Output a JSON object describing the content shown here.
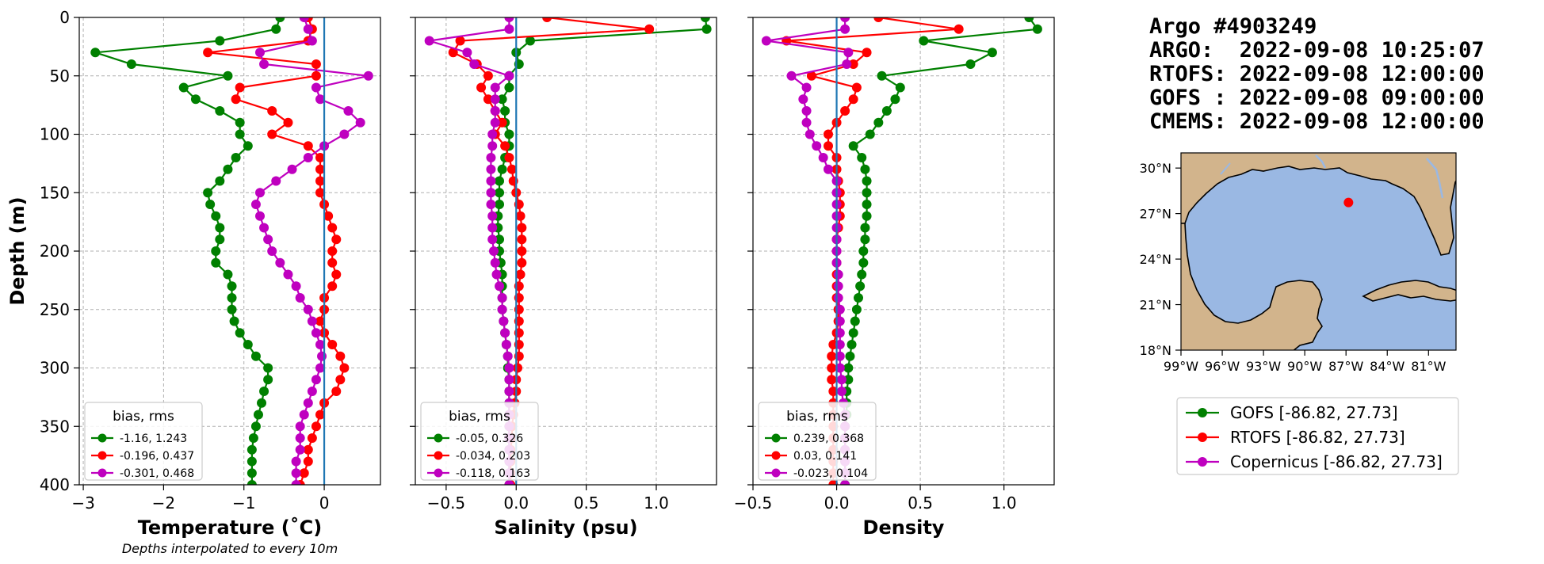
{
  "colors": {
    "GOFS": "#008000",
    "RTOFS": "#ff0000",
    "Copernicus": "#bf00bf",
    "zero_line": "#1f77b4",
    "grid": "#b0b0b0",
    "land": "#d2b48c",
    "ocean": "#9ab8e3"
  },
  "chart_data": [
    {
      "type": "line",
      "xlabel": "Temperature (˚C)",
      "ylabel": "Depth (m)",
      "note": "Depths interpolated to every 10m",
      "xlim": [
        -3.05,
        0.7
      ],
      "ylim": [
        400,
        0
      ],
      "xticks": [
        -3,
        -2,
        -1,
        0
      ],
      "xtick_labels": [
        "−3",
        "−2",
        "−1",
        "0"
      ],
      "yticks": [
        0,
        50,
        100,
        150,
        200,
        250,
        300,
        350,
        400
      ],
      "yticks_labels": [
        "0",
        "50",
        "100",
        "150",
        "200",
        "250",
        "300",
        "350",
        "400"
      ],
      "grid": true,
      "legend": {
        "title": "bias, rms",
        "placement": "lower-left",
        "entries": [
          "-1.16, 1.243",
          "-0.196, 0.437",
          "-0.301, 0.468"
        ]
      },
      "depth": [
        0,
        10,
        20,
        30,
        40,
        50,
        60,
        70,
        80,
        90,
        100,
        110,
        120,
        130,
        140,
        150,
        160,
        170,
        180,
        190,
        200,
        210,
        220,
        230,
        240,
        250,
        260,
        270,
        280,
        290,
        300,
        310,
        320,
        330,
        340,
        350,
        360,
        370,
        380,
        390,
        400
      ],
      "series": [
        {
          "key": "GOFS",
          "values": [
            -0.55,
            -0.6,
            -1.3,
            -2.85,
            -2.4,
            -1.2,
            -1.75,
            -1.6,
            -1.3,
            -1.05,
            -1.05,
            -0.95,
            -1.1,
            -1.2,
            -1.3,
            -1.45,
            -1.42,
            -1.35,
            -1.3,
            -1.3,
            -1.35,
            -1.35,
            -1.2,
            -1.15,
            -1.15,
            -1.15,
            -1.12,
            -1.05,
            -0.95,
            -0.85,
            -0.7,
            -0.7,
            -0.75,
            -0.78,
            -0.82,
            -0.85,
            -0.88,
            -0.9,
            -0.9,
            -0.9,
            -0.9
          ]
        },
        {
          "key": "RTOFS",
          "values": [
            -0.2,
            -0.15,
            -0.2,
            -1.45,
            -0.1,
            -0.1,
            -1.05,
            -1.1,
            -0.65,
            -0.45,
            -0.65,
            -0.2,
            -0.05,
            -0.05,
            -0.05,
            -0.05,
            0.0,
            0.05,
            0.1,
            0.15,
            0.1,
            0.1,
            0.15,
            0.1,
            0.0,
            0.0,
            -0.05,
            0.0,
            0.1,
            0.2,
            0.25,
            0.2,
            0.15,
            0.0,
            -0.05,
            -0.1,
            -0.15,
            -0.2,
            -0.2,
            -0.25,
            -0.3
          ]
        },
        {
          "key": "Copernicus",
          "values": [
            -0.25,
            -0.2,
            -0.15,
            -0.8,
            -0.75,
            0.55,
            -0.1,
            -0.05,
            0.3,
            0.45,
            0.25,
            0.0,
            -0.2,
            -0.4,
            -0.6,
            -0.8,
            -0.85,
            -0.8,
            -0.75,
            -0.7,
            -0.65,
            -0.55,
            -0.45,
            -0.35,
            -0.3,
            -0.2,
            -0.15,
            -0.1,
            -0.05,
            -0.03,
            -0.05,
            -0.1,
            -0.15,
            -0.2,
            -0.25,
            -0.3,
            -0.3,
            -0.3,
            -0.35,
            -0.35,
            -0.35
          ]
        }
      ]
    },
    {
      "type": "line",
      "xlabel": "Salinity (psu)",
      "ylabel": "",
      "note": "",
      "xlim": [
        -0.72,
        1.43
      ],
      "ylim": [
        400,
        0
      ],
      "xticks": [
        -0.5,
        0,
        0.5,
        1
      ],
      "xtick_labels": [
        "−0.5",
        "0.0",
        "0.5",
        "1.0"
      ],
      "yticks": [
        0,
        50,
        100,
        150,
        200,
        250,
        300,
        350,
        400
      ],
      "yticks_labels": [],
      "grid": true,
      "legend": {
        "title": "bias, rms",
        "placement": "lower-left",
        "entries": [
          "-0.05, 0.326",
          "-0.034, 0.203",
          "-0.118, 0.163"
        ]
      },
      "depth": [
        0,
        10,
        20,
        30,
        40,
        50,
        60,
        70,
        80,
        90,
        100,
        110,
        120,
        130,
        140,
        150,
        160,
        170,
        180,
        190,
        200,
        210,
        220,
        230,
        240,
        250,
        260,
        270,
        280,
        290,
        300,
        310,
        320,
        330,
        340,
        350,
        360,
        370,
        380,
        390,
        400
      ],
      "series": [
        {
          "key": "GOFS",
          "values": [
            1.35,
            1.36,
            0.1,
            0.0,
            0.02,
            -0.05,
            -0.05,
            -0.1,
            -0.08,
            -0.08,
            -0.05,
            -0.05,
            -0.08,
            -0.1,
            -0.12,
            -0.12,
            -0.12,
            -0.13,
            -0.13,
            -0.12,
            -0.12,
            -0.11,
            -0.1,
            -0.1,
            -0.1,
            -0.1,
            -0.09,
            -0.08,
            -0.07,
            -0.06,
            -0.06,
            -0.05,
            -0.05,
            -0.05,
            -0.05,
            -0.05,
            -0.05,
            -0.05,
            -0.05,
            -0.05,
            -0.05
          ]
        },
        {
          "key": "RTOFS",
          "values": [
            0.22,
            0.95,
            -0.4,
            -0.45,
            -0.28,
            -0.2,
            -0.25,
            -0.2,
            -0.15,
            -0.1,
            -0.15,
            -0.08,
            -0.05,
            -0.03,
            -0.02,
            0.0,
            0.02,
            0.03,
            0.04,
            0.04,
            0.04,
            0.04,
            0.03,
            0.02,
            0.02,
            0.02,
            0.02,
            0.02,
            0.02,
            0.02,
            0.01,
            0.0,
            0.0,
            -0.01,
            -0.02,
            -0.03,
            -0.03,
            -0.04,
            -0.04,
            -0.04,
            -0.04
          ]
        },
        {
          "key": "Copernicus",
          "values": [
            -0.05,
            -0.05,
            -0.62,
            -0.35,
            -0.3,
            -0.05,
            -0.15,
            -0.15,
            -0.15,
            -0.15,
            -0.17,
            -0.17,
            -0.18,
            -0.18,
            -0.18,
            -0.18,
            -0.18,
            -0.17,
            -0.17,
            -0.17,
            -0.16,
            -0.15,
            -0.14,
            -0.12,
            -0.1,
            -0.1,
            -0.09,
            -0.08,
            -0.07,
            -0.06,
            -0.05,
            -0.05,
            -0.05,
            -0.05,
            -0.05,
            -0.05,
            -0.05,
            -0.05,
            -0.05,
            -0.05,
            -0.05
          ]
        }
      ]
    },
    {
      "type": "line",
      "xlabel": "Density",
      "ylabel": "",
      "note": "",
      "xlim": [
        -0.5,
        1.3
      ],
      "ylim": [
        400,
        0
      ],
      "xticks": [
        -0.5,
        0,
        0.5,
        1
      ],
      "xtick_labels": [
        "−0.5",
        "0.0",
        "0.5",
        "1.0"
      ],
      "yticks": [
        0,
        50,
        100,
        150,
        200,
        250,
        300,
        350,
        400
      ],
      "yticks_labels": [],
      "grid": true,
      "legend": {
        "title": "bias, rms",
        "placement": "lower-left",
        "entries": [
          "0.239, 0.368",
          "0.03, 0.141",
          "-0.023, 0.104"
        ]
      },
      "depth": [
        0,
        10,
        20,
        30,
        40,
        50,
        60,
        70,
        80,
        90,
        100,
        110,
        120,
        130,
        140,
        150,
        160,
        170,
        180,
        190,
        200,
        210,
        220,
        230,
        240,
        250,
        260,
        270,
        280,
        290,
        300,
        310,
        320,
        330,
        340,
        350,
        360,
        370,
        380,
        390,
        400
      ],
      "series": [
        {
          "key": "GOFS",
          "values": [
            1.15,
            1.2,
            0.52,
            0.93,
            0.8,
            0.27,
            0.38,
            0.35,
            0.3,
            0.25,
            0.2,
            0.1,
            0.15,
            0.17,
            0.18,
            0.18,
            0.18,
            0.18,
            0.17,
            0.17,
            0.16,
            0.16,
            0.15,
            0.14,
            0.13,
            0.12,
            0.11,
            0.1,
            0.09,
            0.08,
            0.07,
            0.07,
            0.06,
            0.06,
            0.06,
            0.05,
            0.05,
            0.05,
            0.05,
            0.05,
            0.05
          ]
        },
        {
          "key": "RTOFS",
          "values": [
            0.25,
            0.73,
            -0.3,
            0.18,
            0.1,
            -0.15,
            0.12,
            0.1,
            0.05,
            0.0,
            -0.05,
            -0.05,
            0.0,
            0.0,
            0.01,
            0.02,
            0.02,
            0.02,
            0.01,
            0.0,
            0.0,
            0.0,
            0.0,
            0.0,
            0.0,
            0.01,
            0.01,
            0.0,
            -0.02,
            -0.03,
            -0.03,
            -0.03,
            -0.02,
            -0.02,
            -0.02,
            -0.02,
            -0.02,
            -0.02,
            -0.02,
            -0.02,
            -0.02
          ]
        },
        {
          "key": "Copernicus",
          "values": [
            0.05,
            0.05,
            -0.42,
            0.07,
            0.06,
            -0.27,
            -0.18,
            -0.2,
            -0.18,
            -0.18,
            -0.16,
            -0.12,
            -0.08,
            -0.05,
            0.0,
            0.0,
            0.0,
            0.0,
            0.0,
            0.0,
            0.0,
            0.0,
            0.01,
            0.01,
            0.01,
            0.02,
            0.02,
            0.02,
            0.02,
            0.02,
            0.02,
            0.03,
            0.03,
            0.04,
            0.05,
            0.05,
            0.05,
            0.05,
            0.05,
            0.05,
            0.05
          ]
        }
      ]
    }
  ],
  "info": {
    "title": "Argo #4903249",
    "lines": [
      "ARGO:  2022-09-08 10:25:07",
      "RTOFS: 2022-09-08 12:00:00",
      "GOFS : 2022-09-08 09:00:00",
      "CMEMS: 2022-09-08 12:00:00"
    ]
  },
  "map": {
    "lon_labels": [
      "99°W",
      "96°W",
      "93°W",
      "90°W",
      "87°W",
      "84°W",
      "81°W"
    ],
    "lat_labels": [
      "18°N",
      "21°N",
      "24°N",
      "27°N",
      "30°N"
    ],
    "lon_range": [
      -99,
      -79
    ],
    "lat_range": [
      18,
      31
    ],
    "marker": {
      "lon": -86.82,
      "lat": 27.73
    }
  },
  "main_legend": [
    {
      "key": "GOFS",
      "label": "GOFS [-86.82, 27.73]"
    },
    {
      "key": "RTOFS",
      "label": "RTOFS [-86.82, 27.73]"
    },
    {
      "key": "Copernicus",
      "label": "Copernicus [-86.82, 27.73]"
    }
  ]
}
